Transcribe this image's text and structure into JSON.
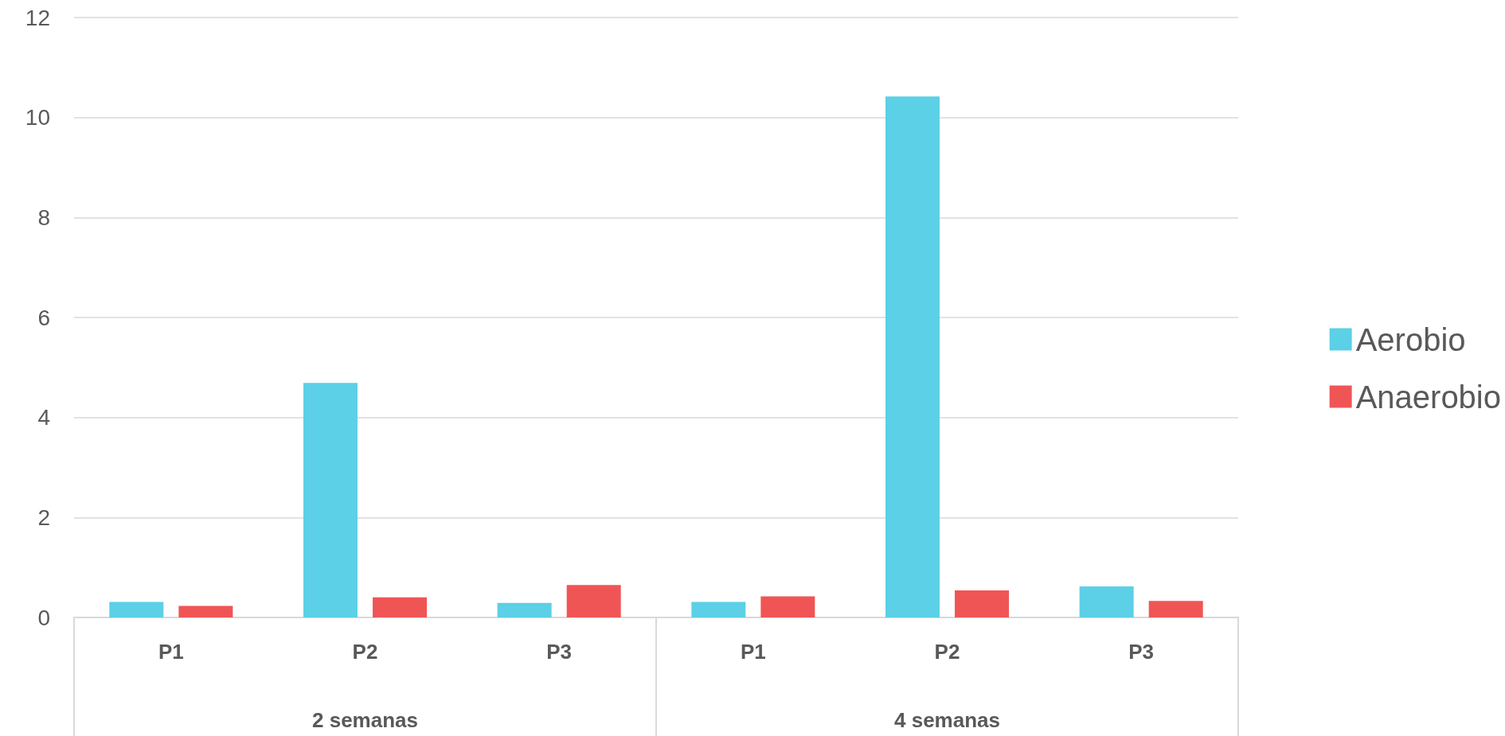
{
  "chart_data": {
    "type": "bar",
    "categories": [
      "P1",
      "P2",
      "P3",
      "P1",
      "P2",
      "P3"
    ],
    "series": [
      {
        "name": "Aerobio",
        "color": "#5bd0e6",
        "values": [
          0.31,
          4.69,
          0.29,
          0.31,
          10.42,
          0.62
        ]
      },
      {
        "name": "Anaerobio",
        "color": "#f05555",
        "values": [
          0.23,
          0.4,
          0.65,
          0.42,
          0.54,
          0.33
        ]
      }
    ],
    "annotations": [
      "2 semanas",
      "4 semanas"
    ],
    "ylim": [
      0,
      12
    ],
    "yticks": [
      0,
      2,
      4,
      6,
      8,
      10,
      12
    ],
    "grid": "y",
    "legend": "right"
  }
}
